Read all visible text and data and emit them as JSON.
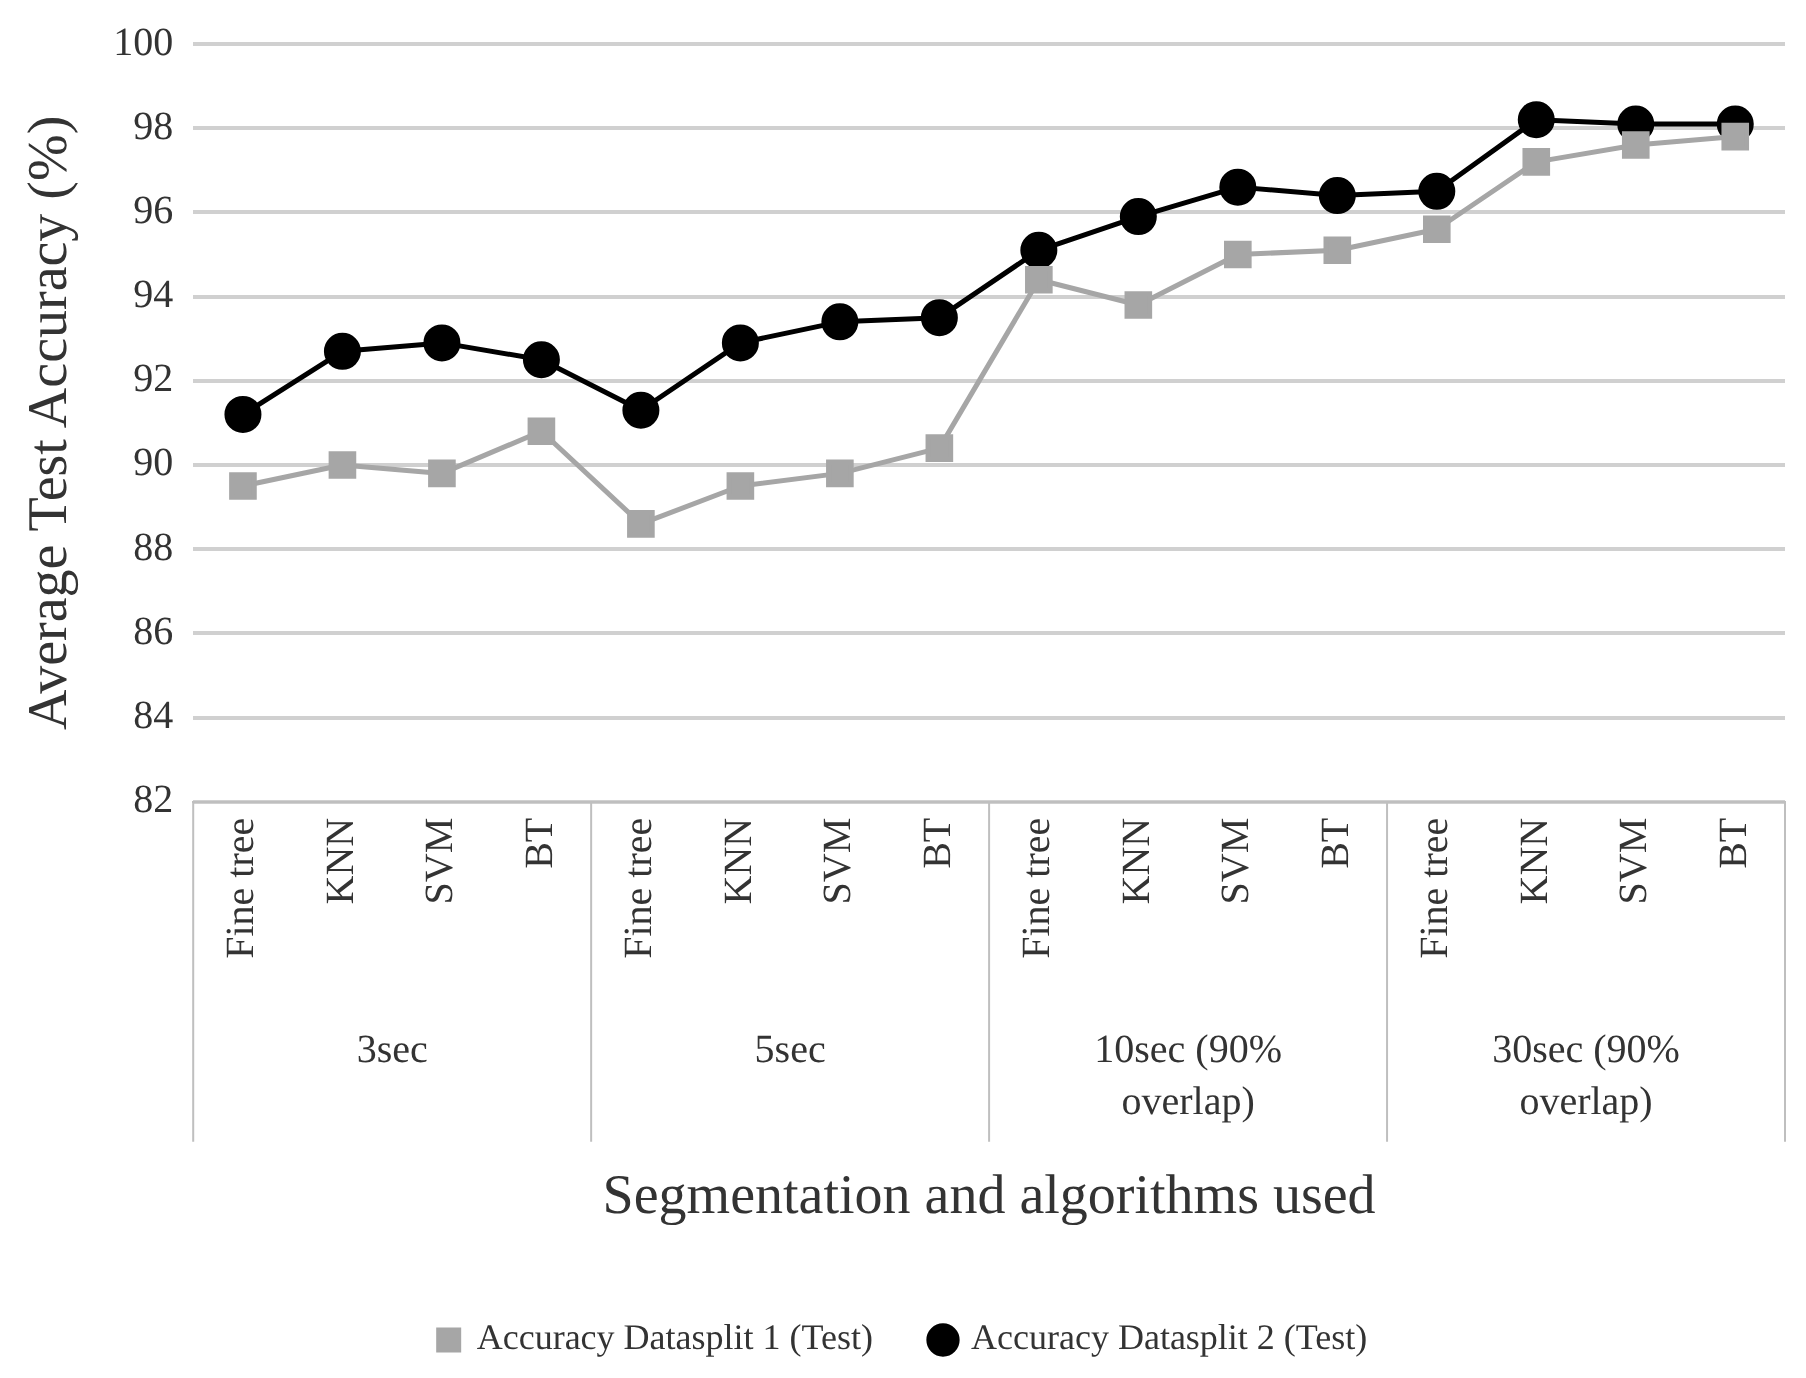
{
  "chart_data": {
    "type": "line",
    "xlabel": "Segmentation and algorithms used",
    "ylabel": "Average Test Accuracy (%)",
    "categories": [
      "Fine tree",
      "KNN",
      "SVM",
      "BT",
      "Fine tree",
      "KNN",
      "SVM",
      "BT",
      "Fine tree",
      "KNN",
      "SVM",
      "BT",
      "Fine tree",
      "KNN",
      "SVM",
      "BT"
    ],
    "annotations": [
      "3sec",
      "5sec",
      "10sec (90% overlap)",
      "30sec (90% overlap)"
    ],
    "series": [
      {
        "name": "Accuracy Datasplit 1 (Test)",
        "color": "#a6a6a6",
        "marker": "square",
        "values": [
          89.5,
          90.0,
          89.8,
          90.8,
          88.6,
          89.5,
          89.8,
          90.4,
          94.4,
          93.8,
          95.0,
          95.1,
          95.6,
          97.2,
          97.6,
          97.8
        ]
      },
      {
        "name": "Accuracy Datasplit 2 (Test)",
        "color": "#000000",
        "marker": "circle",
        "values": [
          91.2,
          92.7,
          92.9,
          92.5,
          91.3,
          92.9,
          93.4,
          93.5,
          95.1,
          95.9,
          96.6,
          96.4,
          96.5,
          98.2,
          98.1,
          98.1
        ]
      }
    ],
    "ylim": [
      82,
      100
    ],
    "yticks": [
      82,
      84,
      86,
      88,
      90,
      92,
      94,
      96,
      98,
      100
    ],
    "grid": "y",
    "legend": "bottom",
    "line_style": "solid"
  }
}
